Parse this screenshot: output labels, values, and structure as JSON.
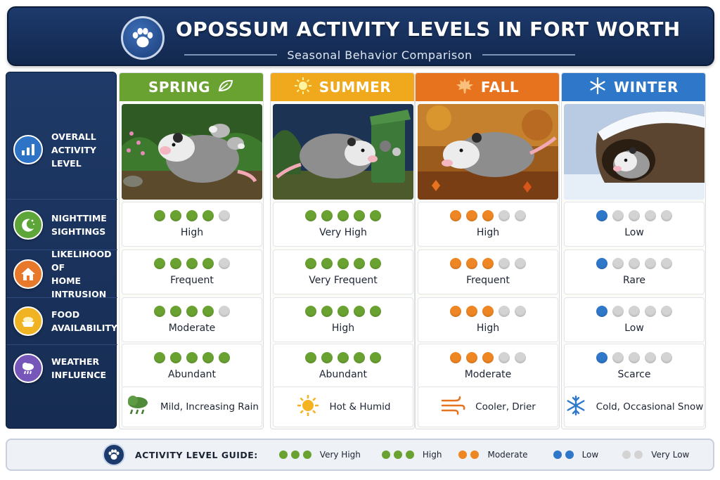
{
  "header": {
    "title": "OPOSSUM ACTIVITY LEVELS IN FORT WORTH",
    "subtitle": "Seasonal Behavior Comparison",
    "badge_icon": "paw-icon"
  },
  "categories": [
    {
      "id": "overall",
      "line1": "OVERALL",
      "line2": "ACTIVITY LEVEL",
      "icon": "bar-chart-icon",
      "color": "#2f73c6"
    },
    {
      "id": "nighttime",
      "line1": "NIGHTTIME",
      "line2": "SIGHTINGS",
      "icon": "moon-stars-icon",
      "color": "#5ea53a"
    },
    {
      "id": "intrusion",
      "line1": "LIKELIHOOD OF",
      "line2": "HOME INTRUSION",
      "icon": "house-icon",
      "color": "#e8782a"
    },
    {
      "id": "food",
      "line1": "FOOD",
      "line2": "AVAILABILITY",
      "icon": "food-bowl-icon",
      "color": "#f0b323"
    },
    {
      "id": "weather",
      "line1": "WEATHER",
      "line2": "INFLUENCE",
      "icon": "rain-cloud-icon",
      "color": "#7656b8"
    }
  ],
  "seasons": [
    {
      "name": "SPRING",
      "head_icon": "leaf-icon",
      "color": "#6aa232",
      "dot_color": "#6aa232",
      "photo": "opossum-with-babies-in-garden",
      "rows": [
        {
          "filled": 4,
          "label": "High"
        },
        {
          "filled": 4,
          "label": "Frequent"
        },
        {
          "filled": 4,
          "label": "Moderate"
        },
        {
          "filled": 5,
          "label": "Abundant"
        }
      ],
      "weather": {
        "icon": "rain-cloud-icon",
        "label": "Mild, Increasing Rain"
      }
    },
    {
      "name": "SUMMER",
      "head_icon": "sun-icon",
      "color": "#f0a81c",
      "dot_color": "#6aa232",
      "photo": "opossum-near-trash-bin",
      "rows": [
        {
          "filled": 5,
          "label": "Very High"
        },
        {
          "filled": 5,
          "label": "Very Frequent"
        },
        {
          "filled": 5,
          "label": "High"
        },
        {
          "filled": 5,
          "label": "Abundant"
        }
      ],
      "weather": {
        "icon": "sun-icon",
        "label": "Hot & Humid"
      }
    },
    {
      "name": "FALL",
      "head_icon": "maple-leaf-icon",
      "color": "#e8731f",
      "dot_color": "#ef8624",
      "photo": "opossum-in-autumn-leaves",
      "rows": [
        {
          "filled": 3,
          "label": "High"
        },
        {
          "filled": 3,
          "label": "Frequent"
        },
        {
          "filled": 3,
          "label": "High"
        },
        {
          "filled": 3,
          "label": "Moderate"
        }
      ],
      "weather": {
        "icon": "wind-icon",
        "label": "Cooler, Drier"
      }
    },
    {
      "name": "WINTER",
      "head_icon": "snowflake-icon",
      "color": "#2f77c8",
      "dot_color": "#2f77c8",
      "photo": "opossum-in-snowy-log",
      "rows": [
        {
          "filled": 1,
          "label": "Low"
        },
        {
          "filled": 1,
          "label": "Rare"
        },
        {
          "filled": 1,
          "label": "Low"
        },
        {
          "filled": 1,
          "label": "Scarce"
        }
      ],
      "weather": {
        "icon": "snowflake-icon",
        "label": "Cold, Occasional Snow"
      }
    }
  ],
  "legend": {
    "title": "ACTIVITY LEVEL GUIDE:",
    "items": [
      {
        "label": "Very High",
        "colors": [
          "#6aa232",
          "#6aa232",
          "#6aa232"
        ]
      },
      {
        "label": "High",
        "colors": [
          "#6aa232",
          "#6aa232",
          "#6aa232"
        ]
      },
      {
        "label": "Moderate",
        "colors": [
          "#ef8624",
          "#ef8624"
        ]
      },
      {
        "label": "Low",
        "colors": [
          "#2f77c8",
          "#2f77c8"
        ]
      },
      {
        "label": "Very Low",
        "colors": [
          "#d3d3d3",
          "#d3d3d3"
        ]
      }
    ]
  }
}
